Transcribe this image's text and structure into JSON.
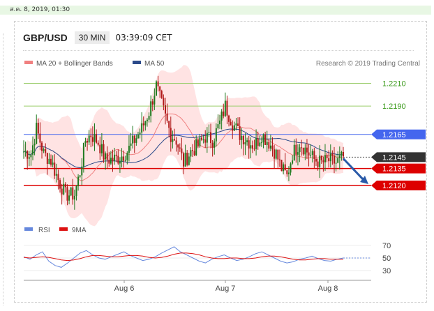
{
  "header": {
    "date": "ส.ค. 8, 2019, 01:30",
    "symbol": "GBP/USD",
    "timeframe": "30 MIN",
    "clock": "03:39:09 CET"
  },
  "legend": {
    "bollinger": "MA 20 + Bollinger Bands",
    "ma50": "MA 50",
    "credit": "Research © 2019 Trading Central",
    "rsi": "RSI",
    "rsi_ma": "9MA"
  },
  "colors": {
    "up": "#1f7a1f",
    "down": "#b01818",
    "band": "#ffd9d9",
    "ma20": "#f08080",
    "ma50": "#2b4a8a",
    "rsi": "#6688dd",
    "rsi_ma": "#dd1111",
    "resistance": "#9acd6b",
    "pivot": "#4466ee",
    "support": "#dd0000",
    "current": "#333333"
  },
  "chart_data": [
    {
      "type": "candlestick",
      "x_labels": [
        "Aug 6",
        "Aug 7",
        "Aug 8"
      ],
      "y_range": [
        1.2093,
        1.2222
      ],
      "levels": [
        {
          "label": "1.2210",
          "value": 1.221,
          "kind": "resistance"
        },
        {
          "label": "1.2190",
          "value": 1.219,
          "kind": "resistance"
        },
        {
          "label": "1.2165",
          "value": 1.2165,
          "kind": "pivot"
        },
        {
          "label": "1.2145",
          "value": 1.2145,
          "kind": "current"
        },
        {
          "label": "1.2135",
          "value": 1.2135,
          "kind": "support"
        },
        {
          "label": "1.2120",
          "value": 1.212,
          "kind": "support"
        }
      ],
      "anchors": [
        {
          "i": 0,
          "v": 1.215
        },
        {
          "i": 4,
          "v": 1.2148
        },
        {
          "i": 7,
          "v": 1.217
        },
        {
          "i": 11,
          "v": 1.2148
        },
        {
          "i": 15,
          "v": 1.2142
        },
        {
          "i": 19,
          "v": 1.2125
        },
        {
          "i": 23,
          "v": 1.2112
        },
        {
          "i": 28,
          "v": 1.2112
        },
        {
          "i": 31,
          "v": 1.2132
        },
        {
          "i": 34,
          "v": 1.216
        },
        {
          "i": 37,
          "v": 1.2165
        },
        {
          "i": 41,
          "v": 1.2158
        },
        {
          "i": 45,
          "v": 1.2143
        },
        {
          "i": 49,
          "v": 1.2143
        },
        {
          "i": 53,
          "v": 1.2145
        },
        {
          "i": 57,
          "v": 1.215
        },
        {
          "i": 61,
          "v": 1.216
        },
        {
          "i": 65,
          "v": 1.217
        },
        {
          "i": 69,
          "v": 1.2185
        },
        {
          "i": 73,
          "v": 1.2208
        },
        {
          "i": 78,
          "v": 1.218
        },
        {
          "i": 81,
          "v": 1.2165
        },
        {
          "i": 84,
          "v": 1.216
        },
        {
          "i": 88,
          "v": 1.214
        },
        {
          "i": 92,
          "v": 1.215
        },
        {
          "i": 96,
          "v": 1.2155
        },
        {
          "i": 100,
          "v": 1.2163
        },
        {
          "i": 104,
          "v": 1.216
        },
        {
          "i": 108,
          "v": 1.2175
        },
        {
          "i": 111,
          "v": 1.219
        },
        {
          "i": 115,
          "v": 1.2175
        },
        {
          "i": 119,
          "v": 1.2165
        },
        {
          "i": 123,
          "v": 1.216
        },
        {
          "i": 127,
          "v": 1.2155
        },
        {
          "i": 131,
          "v": 1.2165
        },
        {
          "i": 135,
          "v": 1.2158
        },
        {
          "i": 139,
          "v": 1.2148
        },
        {
          "i": 142,
          "v": 1.2135
        },
        {
          "i": 145,
          "v": 1.2128
        },
        {
          "i": 148,
          "v": 1.2148
        },
        {
          "i": 152,
          "v": 1.2158
        },
        {
          "i": 156,
          "v": 1.215
        },
        {
          "i": 160,
          "v": 1.2143
        },
        {
          "i": 164,
          "v": 1.214
        },
        {
          "i": 168,
          "v": 1.2142
        },
        {
          "i": 172,
          "v": 1.214
        },
        {
          "i": 176,
          "v": 1.2145
        }
      ],
      "bars": 177
    },
    {
      "type": "line",
      "name": "RSI",
      "y_ticks": [
        70,
        50,
        30
      ],
      "y_range": [
        22,
        78
      ],
      "series": [
        {
          "name": "RSI",
          "values": [
            52,
            48,
            55,
            60,
            45,
            38,
            35,
            42,
            50,
            58,
            62,
            55,
            50,
            48,
            52,
            56,
            60,
            54,
            50,
            46,
            48,
            52,
            58,
            63,
            68,
            60,
            55,
            50,
            45,
            42,
            48,
            52,
            55,
            50,
            46,
            48,
            52,
            57,
            60,
            55,
            50,
            45,
            42,
            44,
            48,
            50,
            53,
            49,
            46,
            45,
            48,
            50
          ]
        },
        {
          "name": "9MA",
          "values": [
            51,
            50,
            51,
            52,
            51,
            49,
            47,
            46,
            47,
            49,
            52,
            54,
            54,
            53,
            52,
            52,
            53,
            54,
            54,
            53,
            51,
            50,
            51,
            53,
            56,
            58,
            58,
            57,
            55,
            52,
            50,
            49,
            49,
            50,
            50,
            49,
            49,
            50,
            52,
            53,
            53,
            52,
            50,
            48,
            47,
            47,
            48,
            49,
            49,
            48,
            48,
            48
          ]
        }
      ]
    }
  ]
}
